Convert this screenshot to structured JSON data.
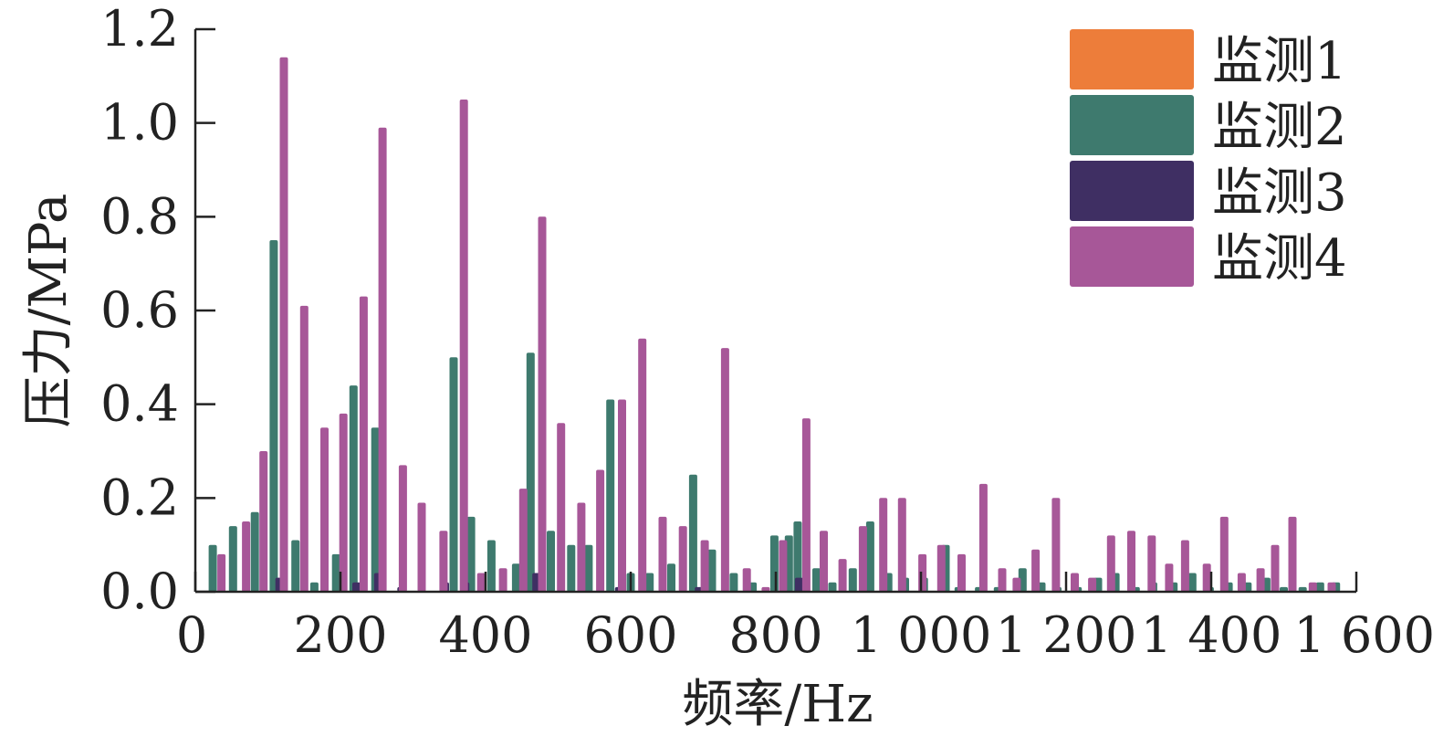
{
  "chart_data": {
    "type": "bar",
    "xlabel": "频率/Hz",
    "ylabel": "压力/MPa",
    "xlim": [
      0,
      1600
    ],
    "ylim": [
      0,
      1.2
    ],
    "x_ticks": [
      "0",
      "200",
      "400",
      "600",
      "800",
      "1 000",
      "1 200",
      "1 400",
      "1 600"
    ],
    "x_tick_values": [
      0,
      200,
      400,
      600,
      800,
      1000,
      1200,
      1400,
      1600
    ],
    "y_ticks": [
      "0.0",
      "0.2",
      "0.4",
      "0.6",
      "0.8",
      "1.0",
      "1.2"
    ],
    "y_tick_values": [
      0,
      0.2,
      0.4,
      0.6,
      0.8,
      1.0,
      1.2
    ],
    "grid": false,
    "legend_position": "top-right",
    "series": [
      {
        "name": "监测1",
        "color": "#ED7D3A",
        "x": [],
        "values": []
      },
      {
        "name": "监测2",
        "color": "#3E7A6E",
        "x": [
          24,
          52,
          82,
          108,
          138,
          164,
          194,
          218,
          248,
          356,
          380,
          408,
          442,
          462,
          490,
          518,
          542,
          572,
          600,
          626,
          656,
          686,
          712,
          742,
          768,
          798,
          818,
          830,
          856,
          878,
          906,
          930,
          955,
          978,
          1004,
          1034,
          1052,
          1080,
          1106,
          1140,
          1166,
          1188,
          1216,
          1244,
          1268,
          1296,
          1320,
          1348,
          1374,
          1398,
          1424,
          1450,
          1476,
          1500,
          1526,
          1550,
          1572
        ],
        "values": [
          0.1,
          0.14,
          0.17,
          0.75,
          0.11,
          0.02,
          0.08,
          0.44,
          0.35,
          0.5,
          0.16,
          0.11,
          0.06,
          0.51,
          0.13,
          0.1,
          0.1,
          0.41,
          0.04,
          0.04,
          0.06,
          0.25,
          0.09,
          0.04,
          0.02,
          0.12,
          0.12,
          0.15,
          0.05,
          0.02,
          0.05,
          0.15,
          0.04,
          0.03,
          0.03,
          0.1,
          0.01,
          0.01,
          0.01,
          0.05,
          0.02,
          0.01,
          0.01,
          0.03,
          0.04,
          0.01,
          0.02,
          0.02,
          0.04,
          0.01,
          0.02,
          0.02,
          0.03,
          0.01,
          0.01,
          0.02,
          0.02
        ]
      },
      {
        "name": "监测3",
        "color": "#3F2F63",
        "x": [
          116,
          222,
          252,
          284,
          344,
          372,
          470,
          584,
          694,
          832
        ],
        "values": [
          0.03,
          0.02,
          0.04,
          0.01,
          0.02,
          0.02,
          0.04,
          0.01,
          0.01,
          0.03
        ]
      },
      {
        "name": "监测4",
        "color": "#A75798",
        "x": [
          36,
          70,
          94,
          122,
          150,
          178,
          204,
          232,
          258,
          286,
          312,
          342,
          370,
          394,
          424,
          452,
          478,
          504,
          532,
          558,
          588,
          616,
          644,
          672,
          702,
          730,
          760,
          786,
          810,
          842,
          866,
          892,
          920,
          948,
          974,
          1002,
          1028,
          1056,
          1086,
          1112,
          1132,
          1158,
          1186,
          1212,
          1236,
          1262,
          1290,
          1318,
          1342,
          1364,
          1394,
          1418,
          1442,
          1468,
          1488,
          1512,
          1540,
          1566
        ],
        "values": [
          0.08,
          0.15,
          0.3,
          1.14,
          0.61,
          0.35,
          0.38,
          0.63,
          0.99,
          0.27,
          0.19,
          0.13,
          1.05,
          0.04,
          0.05,
          0.22,
          0.8,
          0.36,
          0.19,
          0.26,
          0.41,
          0.54,
          0.16,
          0.14,
          0.11,
          0.52,
          0.05,
          0.01,
          0.11,
          0.37,
          0.13,
          0.07,
          0.14,
          0.2,
          0.2,
          0.08,
          0.1,
          0.08,
          0.23,
          0.05,
          0.03,
          0.09,
          0.2,
          0.04,
          0.03,
          0.12,
          0.13,
          0.12,
          0.06,
          0.11,
          0.06,
          0.16,
          0.04,
          0.05,
          0.1,
          0.16,
          0.02,
          0.02
        ]
      }
    ]
  }
}
